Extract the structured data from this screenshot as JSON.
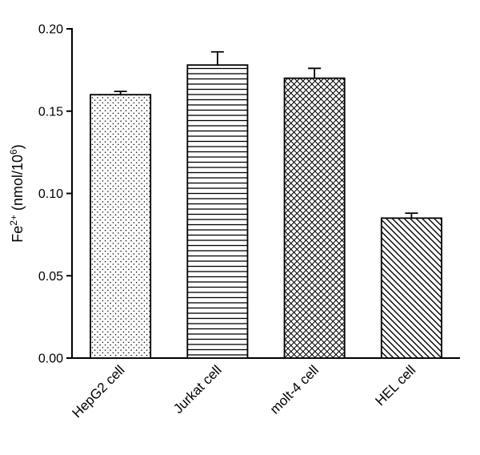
{
  "chart_data": {
    "type": "bar",
    "title": "",
    "categories": [
      "HepG2 cell",
      "Jurkat cell",
      "molt-4 cell",
      "HEL cell"
    ],
    "values": [
      0.16,
      0.178,
      0.17,
      0.085
    ],
    "errors": [
      0.002,
      0.008,
      0.006,
      0.003
    ],
    "patterns": [
      "dots",
      "horizontal-lines",
      "diagonal-crosshatch",
      "diagonal-lines"
    ],
    "xlabel": "",
    "ylabel": "Fe2+ (nmol/10^6)",
    "ylabel_rich": [
      {
        "t": "Fe",
        "sup": false
      },
      {
        "t": "2+",
        "sup": true
      },
      {
        "t": " (nmol/10",
        "sup": false
      },
      {
        "t": "6",
        "sup": true
      },
      {
        "t": ")",
        "sup": false
      }
    ],
    "ylim": [
      0,
      0.2
    ],
    "yticks": [
      0,
      0.05,
      0.1,
      0.15,
      0.2
    ],
    "ytick_labels": [
      "0.00",
      "0.05",
      "0.10",
      "0.15",
      "0.20"
    ],
    "bar_outline_color": "#000000",
    "axis_color": "#000000",
    "background_color": "#ffffff",
    "grid": false,
    "legend": "none"
  }
}
